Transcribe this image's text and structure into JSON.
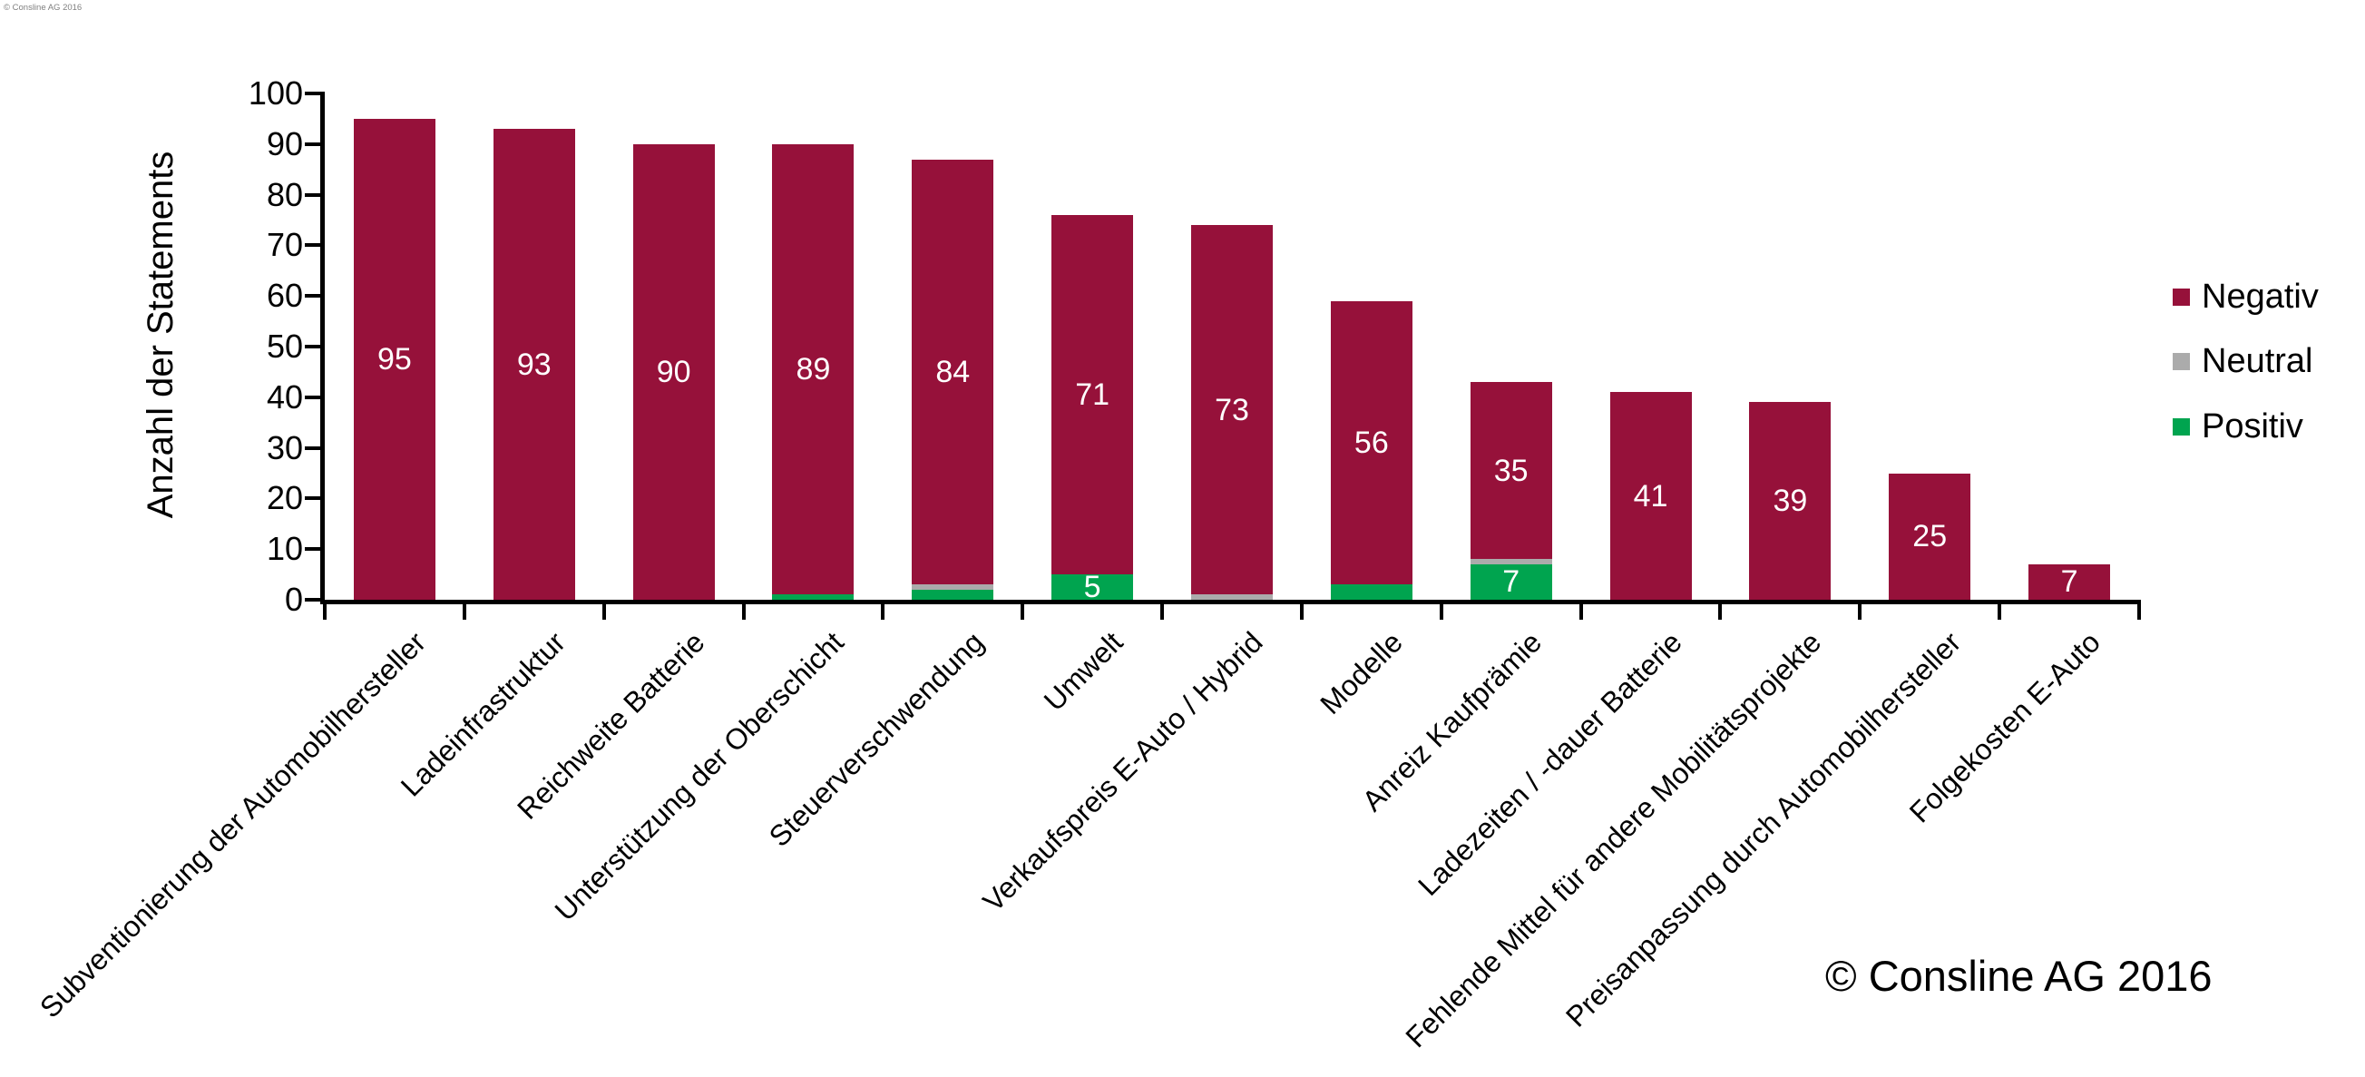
{
  "page": {
    "watermark_top_left": "© Consline AG 2016",
    "copyright": "© Consline AG 2016"
  },
  "chart_data": {
    "type": "bar",
    "stacked": true,
    "title": "",
    "xlabel": "",
    "ylabel": "Anzahl der Statements",
    "ylim": [
      0,
      100
    ],
    "ytick_step": 10,
    "grid": false,
    "legend_position": "right",
    "categories": [
      "Subventionierung der Automobilhersteller",
      "Ladeinfrastruktur",
      "Reichweite Batterie",
      "Unterstützung der Oberschicht",
      "Steuerverschwendung",
      "Umwelt",
      "Verkaufspreis E-Auto / Hybrid",
      "Modelle",
      "Anreiz Kaufprämie",
      "Ladezeiten / -dauer Batterie",
      "Fehlende Mittel für andere Mobilitätsprojekte",
      "Preisanpassung durch Automobilhersteller",
      "Folgekosten E-Auto"
    ],
    "series": [
      {
        "name": "Negativ",
        "color": "#96113A",
        "values": [
          95,
          93,
          90,
          89,
          84,
          71,
          73,
          56,
          35,
          41,
          39,
          25,
          7
        ]
      },
      {
        "name": "Neutral",
        "color": "#ABABAB",
        "values": [
          0,
          0,
          0,
          0,
          1,
          0,
          1,
          0,
          1,
          0,
          0,
          0,
          0
        ]
      },
      {
        "name": "Positiv",
        "color": "#00A44F",
        "values": [
          0,
          0,
          0,
          1,
          2,
          5,
          0,
          3,
          7,
          0,
          0,
          0,
          0
        ]
      }
    ],
    "stack_order_bottom_to_top": [
      "Positiv",
      "Neutral",
      "Negativ"
    ],
    "bar_label_color": "#FFFFFF",
    "axis_color": "#000000"
  }
}
